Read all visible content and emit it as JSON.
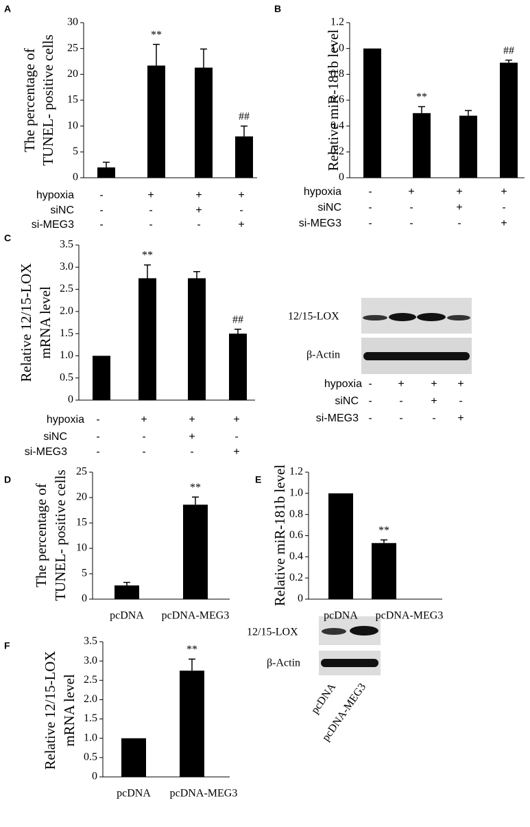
{
  "chart_data": [
    {
      "type": "bar",
      "panel": "A",
      "ylabel": [
        "The percentage of",
        "TUNEL- positive cells"
      ],
      "values": [
        2,
        21.7,
        21.3,
        8
      ],
      "errors": [
        1,
        4.1,
        3.6,
        2
      ],
      "annotations": [
        null,
        "**",
        null,
        "##"
      ],
      "color": "#000000",
      "ylim": [
        0,
        30
      ],
      "yticks": [
        0,
        5,
        10,
        15,
        20,
        25,
        30
      ],
      "conditions": [
        {
          "name": "hypoxia",
          "marks": [
            "-",
            "+",
            "+",
            "+"
          ]
        },
        {
          "name": "siNC",
          "marks": [
            "-",
            "-",
            "+",
            "-"
          ]
        },
        {
          "name": "si-MEG3",
          "marks": [
            "-",
            "-",
            "-",
            "+"
          ]
        }
      ]
    },
    {
      "type": "bar",
      "panel": "B",
      "ylabel": [
        "Relative miR-181b level"
      ],
      "values": [
        1,
        0.5,
        0.48,
        0.89
      ],
      "errors": [
        null,
        0.05,
        0.04,
        0.02
      ],
      "annotations": [
        null,
        "**",
        null,
        "##"
      ],
      "color": "#000000",
      "ylim": [
        0,
        1.2
      ],
      "yticks": [
        0,
        0.2,
        0.4,
        0.6,
        0.8,
        {
          "value": 1,
          "label": "1.0"
        },
        1.2
      ],
      "conditions": [
        {
          "name": "hypoxia",
          "marks": [
            "-",
            "+",
            "+",
            "+"
          ]
        },
        {
          "name": "siNC",
          "marks": [
            "-",
            "-",
            "+",
            "-"
          ]
        },
        {
          "name": "si-MEG3",
          "marks": [
            "-",
            "-",
            "-",
            "+"
          ]
        }
      ]
    },
    {
      "type": "bar",
      "panel": "C",
      "ylabel": [
        "Relative 12/15-LOX",
        "mRNA level"
      ],
      "values": [
        1,
        2.75,
        2.75,
        1.5
      ],
      "errors": [
        null,
        0.3,
        0.15,
        0.1
      ],
      "annotations": [
        null,
        "**",
        null,
        "##"
      ],
      "color": "#000000",
      "ylim": [
        0,
        3.5
      ],
      "yticks": [
        0,
        0.5,
        {
          "value": 1,
          "label": "1.0"
        },
        1.5,
        {
          "value": 2,
          "label": "2.0"
        },
        2.5,
        {
          "value": 3,
          "label": "3.0"
        },
        3.5
      ],
      "conditions": [
        {
          "name": "hypoxia",
          "marks": [
            "-",
            "+",
            "+",
            "+"
          ]
        },
        {
          "name": "siNC",
          "marks": [
            "-",
            "-",
            "+",
            "-"
          ]
        },
        {
          "name": "si-MEG3",
          "marks": [
            "-",
            "-",
            "-",
            "+"
          ]
        }
      ]
    },
    {
      "type": "bar",
      "panel": "D",
      "ylabel": [
        "The percentage of",
        "TUNEL- positive cells"
      ],
      "categories": [
        "pcDNA",
        "pcDNA-MEG3"
      ],
      "values": [
        2.7,
        18.6
      ],
      "errors": [
        0.6,
        1.5
      ],
      "annotations": [
        null,
        "**"
      ],
      "color": "#000000",
      "ylim": [
        0,
        25
      ],
      "yticks": [
        0,
        5,
        10,
        15,
        20,
        25
      ]
    },
    {
      "type": "bar",
      "panel": "E",
      "ylabel": [
        "Relative miR-181b level"
      ],
      "categories": [
        "pcDNA",
        "pcDNA-MEG3"
      ],
      "values": [
        1,
        0.53
      ],
      "errors": [
        null,
        0.03
      ],
      "annotations": [
        null,
        "**"
      ],
      "color": "#000000",
      "ylim": [
        0,
        1.2
      ],
      "yticks": [
        0,
        0.2,
        0.4,
        0.6,
        0.8,
        {
          "value": 1,
          "label": "1.0"
        },
        1.2
      ]
    },
    {
      "type": "bar",
      "panel": "F",
      "ylabel": [
        "Relative 12/15-LOX",
        "mRNA level"
      ],
      "categories": [
        "pcDNA",
        "pcDNA-MEG3"
      ],
      "values": [
        1,
        2.75
      ],
      "errors": [
        null,
        0.3
      ],
      "annotations": [
        null,
        "**"
      ],
      "color": "#000000",
      "ylim": [
        0,
        3.5
      ],
      "yticks": [
        0,
        0.5,
        {
          "value": 1,
          "label": "1.0"
        },
        1.5,
        {
          "value": 2,
          "label": "2.0"
        },
        2.5,
        {
          "value": 3,
          "label": "3.0"
        },
        3.5
      ]
    }
  ],
  "blots": [
    {
      "rows": [
        "12/15-LOX",
        "β-Actin"
      ],
      "conditions": [
        {
          "name": "hypoxia",
          "marks": [
            "-",
            "+",
            "+",
            "+"
          ]
        },
        {
          "name": "siNC",
          "marks": [
            "-",
            "-",
            "+",
            "-"
          ]
        },
        {
          "name": "si-MEG3",
          "marks": [
            "-",
            "-",
            "-",
            "+"
          ]
        }
      ]
    },
    {
      "rows": [
        "12/15-LOX",
        "β-Actin"
      ],
      "lanes": [
        "pcDNA",
        "pcDNA-MEG3"
      ]
    }
  ]
}
